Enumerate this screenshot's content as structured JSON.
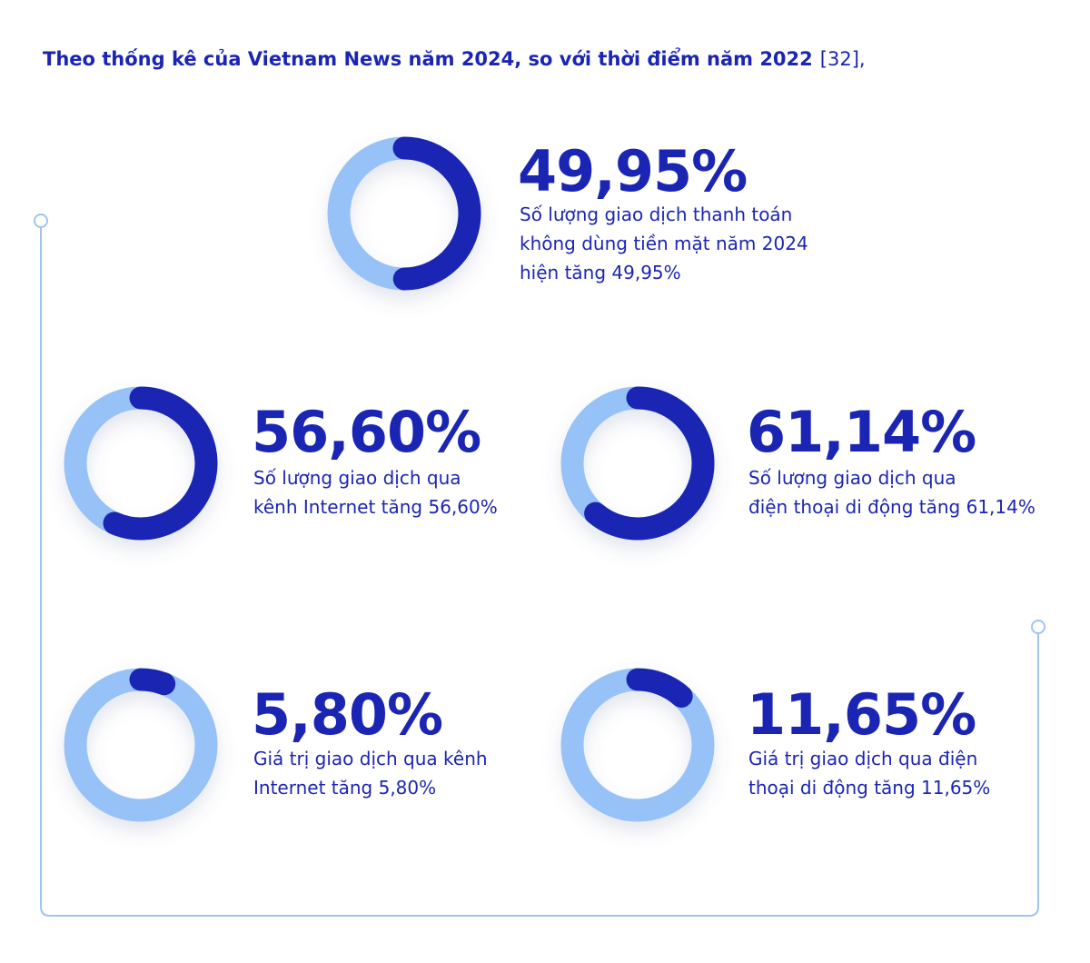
{
  "header": {
    "title": "Theo thống kê của Vietnam News năm 2024, so với thời điểm năm 2022",
    "reference": "[32],"
  },
  "items": [
    {
      "value": 49.95,
      "label": "49,95%",
      "description": [
        "Số lượng giao dịch thanh toán",
        "không dùng tiền mặt năm 2024",
        "hiện tăng 49,95%"
      ]
    },
    {
      "value": 56.6,
      "label": "56,60%",
      "description": [
        "Số lượng giao dịch qua",
        "kênh Internet tăng 56,60%"
      ]
    },
    {
      "value": 61.14,
      "label": "61,14%",
      "description": [
        "Số lượng giao dịch qua",
        "điện thoại di động tăng 61,14%"
      ]
    },
    {
      "value": 5.8,
      "label": "5,80%",
      "description": [
        "Giá trị giao dịch qua kênh",
        "Internet tăng 5,80%"
      ]
    },
    {
      "value": 11.65,
      "label": "11,65%",
      "description": [
        "Giá trị giao dịch qua điện",
        "thoại di động tăng 11,65%"
      ]
    }
  ],
  "colors": {
    "filled": "#1b25b4",
    "remaining": "#96c2f7"
  }
}
